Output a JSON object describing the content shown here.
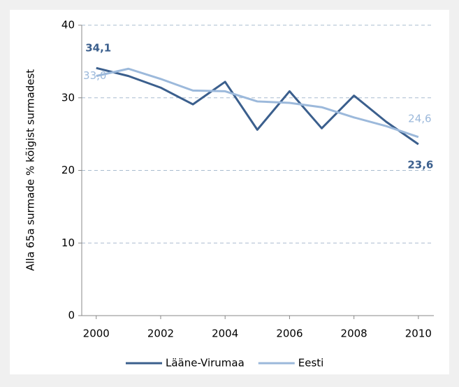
{
  "chart_data": {
    "type": "line",
    "y_label": "Alla 65a surmade % kõigist surmadest",
    "x": [
      2000,
      2001,
      2002,
      2003,
      2004,
      2005,
      2006,
      2007,
      2008,
      2009,
      2010
    ],
    "series": [
      {
        "name": "Lääne-Virumaa",
        "color": "#3b5f8d",
        "values": [
          34.1,
          33.0,
          31.4,
          29.1,
          32.2,
          25.6,
          30.9,
          25.8,
          30.3,
          26.7,
          23.6
        ],
        "value_labels": [
          "34,1",
          null,
          null,
          null,
          null,
          null,
          null,
          null,
          null,
          null,
          "23,6"
        ]
      },
      {
        "name": "Eesti",
        "color": "#9cb9db",
        "values": [
          33.0,
          34.0,
          32.6,
          31.0,
          30.9,
          29.5,
          29.3,
          28.7,
          27.3,
          26.1,
          24.6
        ],
        "value_labels": [
          "33,0",
          null,
          null,
          null,
          null,
          null,
          null,
          null,
          null,
          null,
          "24,6"
        ]
      }
    ],
    "xlim": [
      1999.55,
      2010.48
    ],
    "xticks": [
      2000,
      2002,
      2004,
      2006,
      2008,
      2010
    ],
    "ylim": [
      0,
      40
    ],
    "yticks": [
      0,
      10,
      20,
      30,
      40
    ],
    "grid": true,
    "legend": "bottom"
  }
}
